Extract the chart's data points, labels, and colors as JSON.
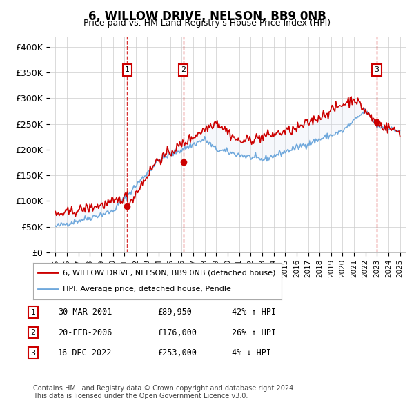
{
  "title": "6, WILLOW DRIVE, NELSON, BB9 0NB",
  "subtitle": "Price paid vs. HM Land Registry's House Price Index (HPI)",
  "ylabel": "",
  "background_color": "#ffffff",
  "plot_bg_color": "#ffffff",
  "grid_color": "#cccccc",
  "sale1": {
    "date_num": 2001.25,
    "price": 89950,
    "label": "1",
    "pct": "42%",
    "dir": "↑"
  },
  "sale2": {
    "date_num": 2006.13,
    "price": 176000,
    "label": "2",
    "pct": "26%",
    "dir": "↑"
  },
  "sale3": {
    "date_num": 2022.96,
    "price": 253000,
    "label": "3",
    "pct": "4%",
    "dir": "↓"
  },
  "xmin": 1994.5,
  "xmax": 2025.5,
  "ymin": 0,
  "ymax": 420000,
  "yticks": [
    0,
    50000,
    100000,
    150000,
    200000,
    250000,
    300000,
    350000,
    400000
  ],
  "ytick_labels": [
    "£0",
    "£50K",
    "£100K",
    "£150K",
    "£200K",
    "£250K",
    "£300K",
    "£350K",
    "£400K"
  ],
  "hpi_color": "#6fa8dc",
  "price_color": "#cc0000",
  "vline_color": "#cc0000",
  "sale_marker_color": "#cc0000",
  "label_box_color": "#cc0000",
  "shade_color": "#dce6f5",
  "footer": "Contains HM Land Registry data © Crown copyright and database right 2024.\nThis data is licensed under the Open Government Licence v3.0.",
  "legend1": "6, WILLOW DRIVE, NELSON, BB9 0NB (detached house)",
  "legend2": "HPI: Average price, detached house, Pendle",
  "table": [
    {
      "num": "1",
      "date": "30-MAR-2001",
      "price": "£89,950",
      "pct": "42% ↑ HPI"
    },
    {
      "num": "2",
      "date": "20-FEB-2006",
      "price": "£176,000",
      "pct": "26% ↑ HPI"
    },
    {
      "num": "3",
      "date": "16-DEC-2022",
      "price": "£253,000",
      "pct": "4% ↓ HPI"
    }
  ]
}
